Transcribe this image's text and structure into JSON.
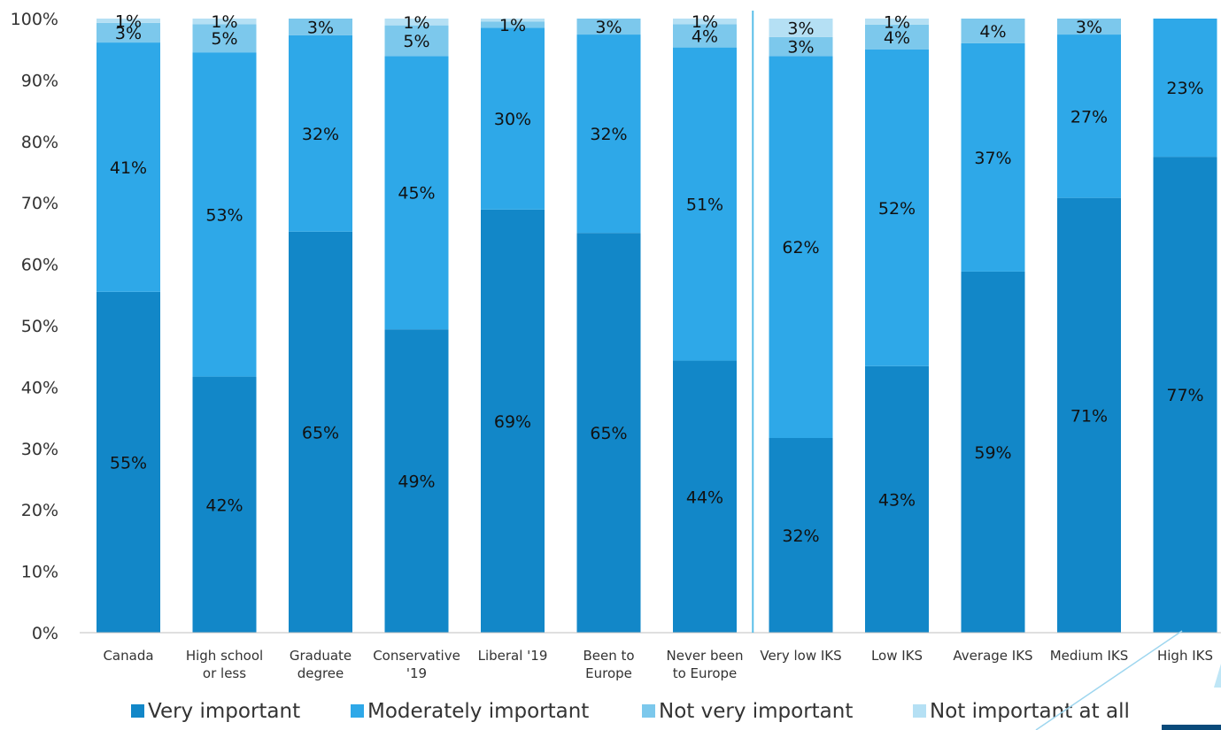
{
  "chart_data": {
    "type": "bar",
    "stacked": true,
    "categories": [
      [
        "Canada"
      ],
      [
        "High school",
        "or less"
      ],
      [
        "Graduate",
        "degree"
      ],
      [
        "Conservative",
        "'19"
      ],
      [
        "Liberal '19"
      ],
      [
        "Been to",
        "Europe"
      ],
      [
        "Never been",
        "to Europe"
      ],
      [
        "Very low IKS"
      ],
      [
        "Low IKS"
      ],
      [
        "Average IKS"
      ],
      [
        "Medium IKS"
      ],
      [
        "High IKS"
      ]
    ],
    "series": [
      {
        "name": "Very important",
        "color": "#1287c8",
        "values": [
          55.5,
          41.7,
          65.3,
          49.4,
          68.9,
          65.1,
          44.3,
          31.7,
          43.4,
          58.8,
          70.8,
          77.5
        ],
        "labels": [
          "55%",
          "42%",
          "65%",
          "49%",
          "69%",
          "65%",
          "44%",
          "32%",
          "43%",
          "59%",
          "71%",
          "77%"
        ]
      },
      {
        "name": "Moderately important",
        "color": "#2ea8e8",
        "values": [
          40.6,
          52.8,
          32.0,
          44.5,
          29.6,
          32.3,
          51.0,
          62.2,
          51.6,
          37.2,
          26.6,
          22.5
        ],
        "labels": [
          "41%",
          "53%",
          "32%",
          "45%",
          "30%",
          "32%",
          "51%",
          "62%",
          "52%",
          "37%",
          "27%",
          "23%"
        ]
      },
      {
        "name": "Not very important",
        "color": "#7cc8ec",
        "values": [
          3.2,
          4.6,
          2.7,
          5.0,
          1.0,
          2.6,
          3.8,
          3.1,
          4.0,
          4.0,
          2.6,
          0
        ],
        "labels": [
          "3%",
          "5%",
          "3%",
          "5%",
          "1%",
          "3%",
          "4%",
          "3%",
          "4%",
          "4%",
          "3%",
          ""
        ]
      },
      {
        "name": "Not important at all",
        "color": "#b5e0f4",
        "values": [
          0.7,
          0.9,
          0,
          1.1,
          0.5,
          0,
          0.9,
          3.0,
          1.0,
          0,
          0,
          0
        ],
        "labels": [
          "1%",
          "1%",
          "",
          "1%",
          "",
          "",
          "1%",
          "3%",
          "1%",
          "",
          "",
          ""
        ]
      }
    ],
    "ylim": [
      0,
      100
    ],
    "yticks": [
      "0%",
      "10%",
      "20%",
      "30%",
      "40%",
      "50%",
      "60%",
      "70%",
      "80%",
      "90%",
      "100%"
    ],
    "grid": false,
    "legend": "bottom",
    "divider_after_index": 6
  }
}
